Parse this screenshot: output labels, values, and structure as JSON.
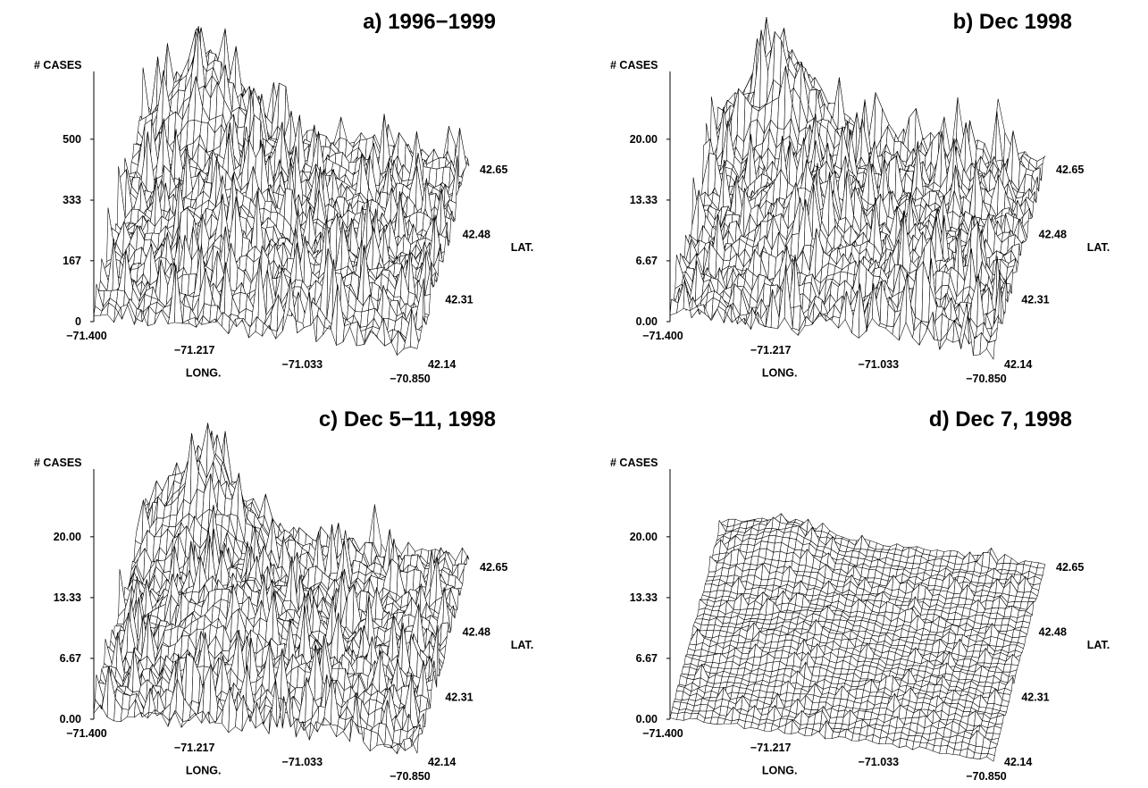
{
  "chart_data": [
    {
      "type": "surface",
      "title": "a) 1996−1999",
      "zlabel": "# CASES",
      "z_ticks": [
        "500",
        "333",
        "167",
        "0"
      ],
      "zlim": [
        0,
        600
      ],
      "xlabel": "LONG.",
      "x_ticks": [
        "−71.400",
        "−71.217",
        "−71.033",
        "−70.850"
      ],
      "ylabel": "LAT.",
      "y_ticks": [
        "42.14",
        "42.31",
        "42.48",
        "42.65"
      ],
      "grid": "mesh",
      "peak_cases": 580,
      "noise_seed": 11
    },
    {
      "type": "surface",
      "title": "b) Dec 1998",
      "zlabel": "# CASES",
      "z_ticks": [
        "20.00",
        "13.33",
        "6.67",
        "0.00"
      ],
      "zlim": [
        0,
        24
      ],
      "xlabel": "LONG.",
      "x_ticks": [
        "−71.400",
        "−71.217",
        "−71.033",
        "−70.850"
      ],
      "ylabel": "LAT.",
      "y_ticks": [
        "42.14",
        "42.31",
        "42.48",
        "42.65"
      ],
      "grid": "mesh",
      "peak_cases": 24,
      "noise_seed": 23
    },
    {
      "type": "surface",
      "title": "c) Dec 5−11, 1998",
      "zlabel": "# CASES",
      "z_ticks": [
        "20.00",
        "13.33",
        "6.67",
        "0.00"
      ],
      "zlim": [
        0,
        24
      ],
      "xlabel": "LONG.",
      "x_ticks": [
        "−71.400",
        "−71.217",
        "−71.033",
        "−70.850"
      ],
      "ylabel": "LAT.",
      "y_ticks": [
        "42.14",
        "42.31",
        "42.48",
        "42.65"
      ],
      "grid": "mesh",
      "peak_cases": 22,
      "noise_seed": 37
    },
    {
      "type": "surface",
      "title": "d) Dec 7, 1998",
      "zlabel": "# CASES",
      "z_ticks": [
        "20.00",
        "13.33",
        "6.67",
        "0.00"
      ],
      "zlim": [
        0,
        24
      ],
      "xlabel": "LONG.",
      "x_ticks": [
        "−71.400",
        "−71.217",
        "−71.033",
        "−70.850"
      ],
      "ylabel": "LAT.",
      "y_ticks": [
        "42.14",
        "42.31",
        "42.48",
        "42.65"
      ],
      "grid": "mesh",
      "peak_cases": 5,
      "noise_seed": 53
    }
  ]
}
